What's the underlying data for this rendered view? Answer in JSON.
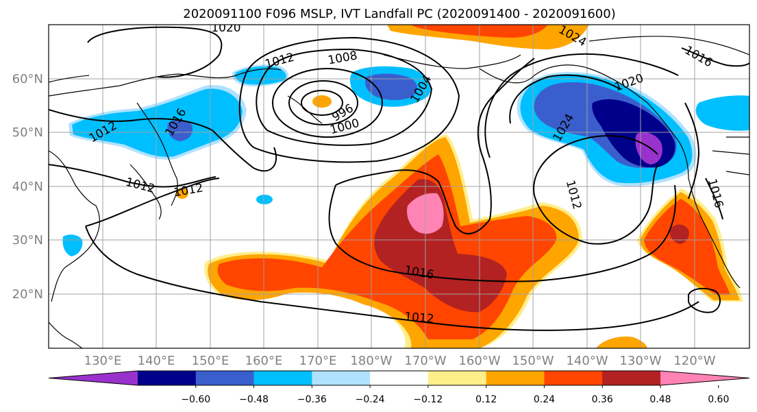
{
  "title": "2020091100 F096 MSLP, IVT Landfall PC (2020091400 - 2020091600)",
  "axes": {
    "lon_ticks": [
      "130°E",
      "140°E",
      "150°E",
      "160°E",
      "170°E",
      "180°W",
      "170°W",
      "160°W",
      "150°W",
      "140°W",
      "130°W",
      "120°W"
    ],
    "lat_ticks": [
      "60°N",
      "50°N",
      "40°N",
      "30°N",
      "20°N"
    ]
  },
  "colorbar": {
    "colors": [
      "#9932cc",
      "#00008b",
      "#3a5fcd",
      "#00bfff",
      "#b0e2ff",
      "#ffffff",
      "#ffee8a",
      "#ffa500",
      "#ff4500",
      "#b22222",
      "#ff83b4"
    ],
    "tick_labels": [
      "−0.60",
      "−0.48",
      "−0.36",
      "−0.24",
      "−0.12",
      "0.12",
      "0.24",
      "0.36",
      "0.48",
      "0.60"
    ]
  },
  "contour_labels": [
    "1020",
    "1024",
    "1016",
    "1012",
    "1008",
    "1004",
    "996",
    "1000",
    "1016",
    "1020",
    "1024",
    "1012",
    "1012",
    "1012",
    "1016",
    "1012",
    "1016",
    "1012"
  ]
}
